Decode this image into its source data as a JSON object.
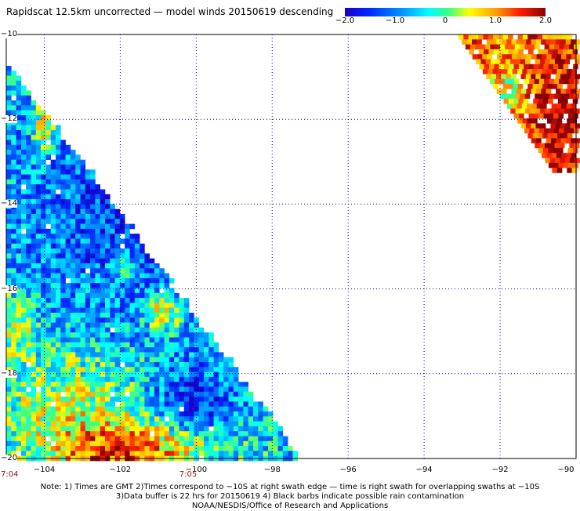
{
  "title": "Rapidscat 12.5km uncorrected — model winds 20150619 descending",
  "colorbar": {
    "ticks": [
      {
        "value": -2.0,
        "label": "−2.0"
      },
      {
        "value": -1.0,
        "label": "−1.0"
      },
      {
        "value": 0,
        "label": "0"
      },
      {
        "value": 1.0,
        "label": "1.0"
      },
      {
        "value": 2.0,
        "label": "2.0"
      }
    ],
    "range": [
      -2.0,
      2.0
    ]
  },
  "axes": {
    "lat_labels": [
      {
        "value": -10,
        "label": "−10"
      },
      {
        "value": -12,
        "label": "−12"
      },
      {
        "value": -14,
        "label": "−14"
      },
      {
        "value": -16,
        "label": "−16"
      },
      {
        "value": -18,
        "label": "−18"
      },
      {
        "value": -20,
        "label": "−20"
      }
    ],
    "lon_labels": [
      {
        "value": -104,
        "label": "−104"
      },
      {
        "value": -102,
        "label": "−102"
      },
      {
        "value": -100,
        "label": "−100"
      },
      {
        "value": -98,
        "label": "−98"
      },
      {
        "value": -96,
        "label": "−96"
      },
      {
        "value": -94,
        "label": "−94"
      },
      {
        "value": -92,
        "label": "−92"
      },
      {
        "value": -90,
        "label": "−90"
      }
    ],
    "lat_range": [
      -20,
      -10
    ],
    "lon_range": [
      -105,
      -90
    ],
    "grid": true
  },
  "times": [
    {
      "lon": -105,
      "label": "7:04"
    },
    {
      "lon": -100.3,
      "label": "7:05"
    }
  ],
  "notes": [
    "Note: 1) Times are GMT 2)Times correspond to −10S at right swath edge — time is right swath for overlapping swaths at −10S",
    "3)Data buffer is 22 hrs for 20150619 4) Black barbs indicate possible rain contamination",
    "NOAA/NESDIS/Office of Research and Applications"
  ],
  "colors": {
    "low": "#0000c8",
    "mid": "#00ffff",
    "high": "#8b0000"
  }
}
